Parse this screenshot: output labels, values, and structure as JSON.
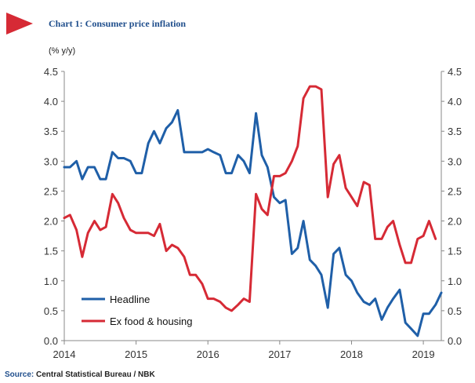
{
  "chart_data": {
    "type": "line",
    "title": "Chart 1: Consumer price inflation",
    "unit_label": "(% y/y)",
    "source_label": "Source:",
    "source_text": "Central Statistical Bureau / NBK",
    "ylim": [
      0,
      4.5
    ],
    "y_ticks": [
      "0.0",
      "0.5",
      "1.0",
      "1.5",
      "2.0",
      "2.5",
      "3.0",
      "3.5",
      "4.0",
      "4.5"
    ],
    "y_ticks_right": [
      "0.0",
      "0.5",
      "1.0",
      "1.5",
      "2.0",
      "2.5",
      "3.0",
      "3.5",
      "4.0",
      "4.5"
    ],
    "xlim": [
      2014.0,
      2019.25
    ],
    "x_ticks": [
      "2014",
      "2015",
      "2016",
      "2017",
      "2018",
      "2019"
    ],
    "legend_position": "bottom-left",
    "grid": false,
    "series": [
      {
        "name": "Headline",
        "color": "#1f5fa8",
        "points": [
          [
            2014.0,
            2.9
          ],
          [
            2014.08,
            2.9
          ],
          [
            2014.17,
            3.0
          ],
          [
            2014.25,
            2.7
          ],
          [
            2014.33,
            2.9
          ],
          [
            2014.42,
            2.9
          ],
          [
            2014.5,
            2.7
          ],
          [
            2014.58,
            2.7
          ],
          [
            2014.67,
            3.15
          ],
          [
            2014.75,
            3.05
          ],
          [
            2014.83,
            3.05
          ],
          [
            2014.92,
            3.0
          ],
          [
            2015.0,
            2.8
          ],
          [
            2015.08,
            2.8
          ],
          [
            2015.17,
            3.3
          ],
          [
            2015.25,
            3.5
          ],
          [
            2015.33,
            3.3
          ],
          [
            2015.42,
            3.55
          ],
          [
            2015.5,
            3.65
          ],
          [
            2015.58,
            3.85
          ],
          [
            2015.67,
            3.15
          ],
          [
            2015.75,
            3.15
          ],
          [
            2015.83,
            3.15
          ],
          [
            2015.92,
            3.15
          ],
          [
            2016.0,
            3.2
          ],
          [
            2016.08,
            3.15
          ],
          [
            2016.17,
            3.1
          ],
          [
            2016.25,
            2.8
          ],
          [
            2016.33,
            2.8
          ],
          [
            2016.42,
            3.1
          ],
          [
            2016.5,
            3.0
          ],
          [
            2016.58,
            2.8
          ],
          [
            2016.67,
            3.8
          ],
          [
            2016.75,
            3.1
          ],
          [
            2016.83,
            2.9
          ],
          [
            2016.92,
            2.4
          ],
          [
            2017.0,
            2.3
          ],
          [
            2017.08,
            2.35
          ],
          [
            2017.17,
            1.45
          ],
          [
            2017.25,
            1.55
          ],
          [
            2017.33,
            2.0
          ],
          [
            2017.42,
            1.35
          ],
          [
            2017.5,
            1.25
          ],
          [
            2017.58,
            1.1
          ],
          [
            2017.67,
            0.55
          ],
          [
            2017.75,
            1.45
          ],
          [
            2017.83,
            1.55
          ],
          [
            2017.92,
            1.1
          ],
          [
            2018.0,
            1.0
          ],
          [
            2018.08,
            0.8
          ],
          [
            2018.17,
            0.65
          ],
          [
            2018.25,
            0.6
          ],
          [
            2018.33,
            0.7
          ],
          [
            2018.42,
            0.35
          ],
          [
            2018.5,
            0.55
          ],
          [
            2018.58,
            0.7
          ],
          [
            2018.67,
            0.85
          ],
          [
            2018.75,
            0.3
          ],
          [
            2018.83,
            0.2
          ],
          [
            2018.92,
            0.08
          ],
          [
            2019.0,
            0.45
          ],
          [
            2019.08,
            0.45
          ],
          [
            2019.17,
            0.6
          ],
          [
            2019.25,
            0.8
          ]
        ]
      },
      {
        "name": "Ex food & housing",
        "color": "#d62a35",
        "points": [
          [
            2014.0,
            2.05
          ],
          [
            2014.08,
            2.1
          ],
          [
            2014.17,
            1.85
          ],
          [
            2014.25,
            1.4
          ],
          [
            2014.33,
            1.8
          ],
          [
            2014.42,
            2.0
          ],
          [
            2014.5,
            1.85
          ],
          [
            2014.58,
            1.9
          ],
          [
            2014.67,
            2.45
          ],
          [
            2014.75,
            2.3
          ],
          [
            2014.83,
            2.05
          ],
          [
            2014.92,
            1.85
          ],
          [
            2015.0,
            1.8
          ],
          [
            2015.08,
            1.8
          ],
          [
            2015.17,
            1.8
          ],
          [
            2015.25,
            1.75
          ],
          [
            2015.33,
            1.95
          ],
          [
            2015.42,
            1.5
          ],
          [
            2015.5,
            1.6
          ],
          [
            2015.58,
            1.55
          ],
          [
            2015.67,
            1.4
          ],
          [
            2015.75,
            1.1
          ],
          [
            2015.83,
            1.1
          ],
          [
            2015.92,
            0.95
          ],
          [
            2016.0,
            0.7
          ],
          [
            2016.08,
            0.7
          ],
          [
            2016.17,
            0.65
          ],
          [
            2016.25,
            0.55
          ],
          [
            2016.33,
            0.5
          ],
          [
            2016.42,
            0.6
          ],
          [
            2016.5,
            0.7
          ],
          [
            2016.58,
            0.65
          ],
          [
            2016.67,
            2.45
          ],
          [
            2016.75,
            2.2
          ],
          [
            2016.83,
            2.1
          ],
          [
            2016.92,
            2.75
          ],
          [
            2017.0,
            2.75
          ],
          [
            2017.08,
            2.8
          ],
          [
            2017.17,
            3.0
          ],
          [
            2017.25,
            3.25
          ],
          [
            2017.33,
            4.05
          ],
          [
            2017.42,
            4.25
          ],
          [
            2017.5,
            4.25
          ],
          [
            2017.58,
            4.2
          ],
          [
            2017.67,
            2.4
          ],
          [
            2017.75,
            2.95
          ],
          [
            2017.83,
            3.1
          ],
          [
            2017.92,
            2.55
          ],
          [
            2018.0,
            2.4
          ],
          [
            2018.08,
            2.25
          ],
          [
            2018.17,
            2.65
          ],
          [
            2018.25,
            2.6
          ],
          [
            2018.33,
            1.7
          ],
          [
            2018.42,
            1.7
          ],
          [
            2018.5,
            1.9
          ],
          [
            2018.58,
            2.0
          ],
          [
            2018.67,
            1.6
          ],
          [
            2018.75,
            1.3
          ],
          [
            2018.83,
            1.3
          ],
          [
            2018.92,
            1.7
          ],
          [
            2019.0,
            1.75
          ],
          [
            2019.08,
            2.0
          ],
          [
            2019.17,
            1.7
          ]
        ]
      }
    ]
  },
  "colors": {
    "title_blue": "#1f4e8c",
    "marker_red": "#d62a35",
    "axis": "#888888"
  }
}
